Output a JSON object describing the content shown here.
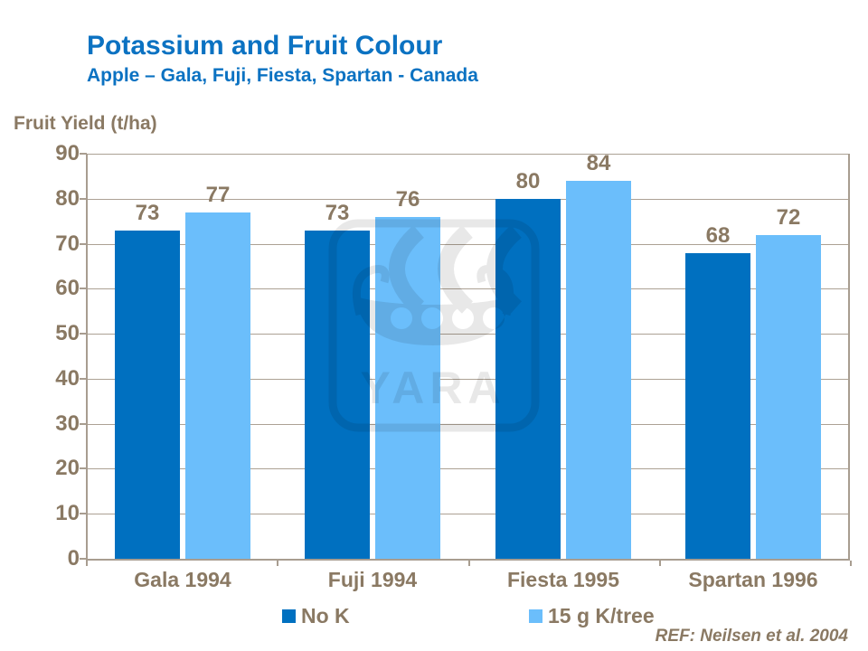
{
  "colors": {
    "title_blue": "#0B72C2",
    "label_brown": "#8A7963",
    "axis_tan": "#A89D90",
    "gridline_tan": "#ACA194",
    "watermark_gray": "#E9E9E9"
  },
  "chart_data": {
    "type": "bar",
    "title": "Potassium and Fruit Colour",
    "subtitle": "Apple – Gala, Fuji, Fiesta, Spartan - Canada",
    "ylabel": "Fruit Yield (t/ha)",
    "categories": [
      "Gala 1994",
      "Fuji 1994",
      "Fiesta 1995",
      "Spartan 1996"
    ],
    "series": [
      {
        "name": "No K",
        "color": "#0070C0",
        "values": [
          73,
          73,
          80,
          68
        ]
      },
      {
        "name": "15 g K/tree",
        "color": "#6BBEFB",
        "values": [
          77,
          76,
          84,
          72
        ]
      }
    ],
    "ylim": [
      0,
      90
    ],
    "ytick_step": 10,
    "ytick_labels": [
      "0",
      "10",
      "20",
      "30",
      "40",
      "50",
      "60",
      "70",
      "80",
      "90"
    ],
    "grid": true,
    "data_labels": true,
    "legend_position": "bottom",
    "reference": "REF: Neilsen et al. 2004",
    "watermark_text": "YARA"
  }
}
